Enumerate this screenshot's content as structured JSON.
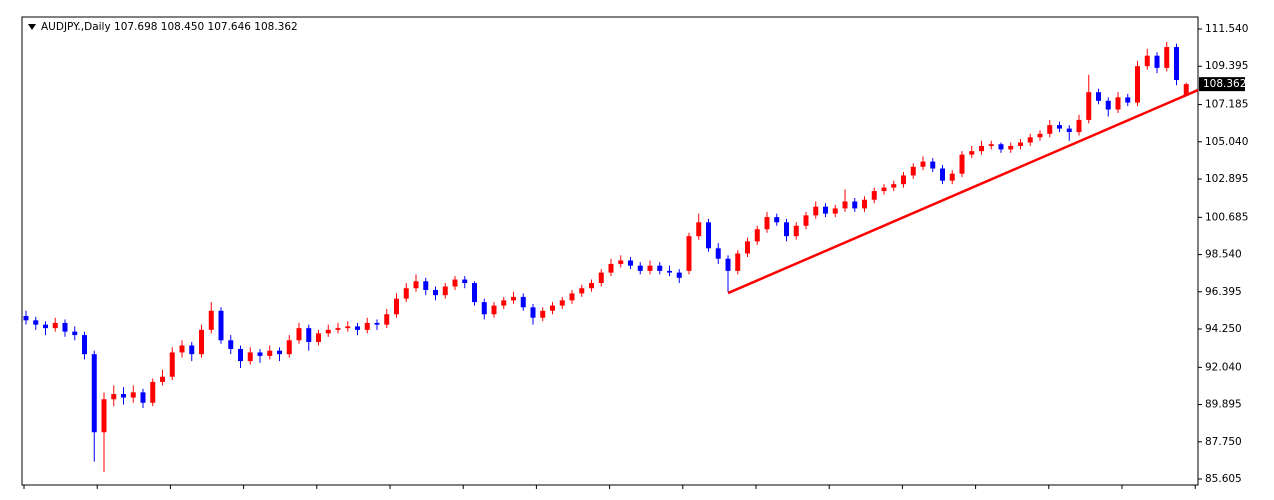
{
  "chart_data": {
    "type": "candlestick",
    "title": "AUDJPY.,Daily  107.698 108.450 107.646 108.362",
    "up_color": "#ff0000",
    "down_color": "#0000ff",
    "ylim": [
      85.259,
      112.232
    ],
    "yticks": [
      {
        "value": 111.54,
        "label": "111.540"
      },
      109.395,
      107.185,
      {
        "value": 105.04,
        "label": "105.040"
      },
      102.895,
      100.685,
      {
        "value": 98.54,
        "label": "98.540"
      },
      96.395,
      {
        "value": 94.25,
        "label": "94.250"
      },
      {
        "value": 92.04,
        "label": "92.040"
      },
      89.895,
      {
        "value": 87.75,
        "label": "87.750"
      },
      85.605
    ],
    "current_price": 108.362,
    "trendline": {
      "color": "#ff0000",
      "x": [
        72,
        120.2
      ],
      "y": [
        96.32,
        108.02
      ]
    },
    "ohlc": [
      [
        95.0,
        95.3,
        94.5,
        94.75
      ],
      [
        94.75,
        94.95,
        94.2,
        94.5
      ],
      [
        94.5,
        94.7,
        93.9,
        94.3
      ],
      [
        94.3,
        94.9,
        94.1,
        94.6
      ],
      [
        94.6,
        94.8,
        93.8,
        94.1
      ],
      [
        94.1,
        94.4,
        93.6,
        93.9
      ],
      [
        93.9,
        94.1,
        92.5,
        92.8
      ],
      [
        92.8,
        93.0,
        86.6,
        88.3
      ],
      [
        88.3,
        90.6,
        86.0,
        90.2
      ],
      [
        90.2,
        91.0,
        89.8,
        90.5
      ],
      [
        90.5,
        90.9,
        89.9,
        90.3
      ],
      [
        90.3,
        91.0,
        90.0,
        90.6
      ],
      [
        90.6,
        90.8,
        89.7,
        90.0
      ],
      [
        90.0,
        91.4,
        89.8,
        91.2
      ],
      [
        91.2,
        91.9,
        91.0,
        91.5
      ],
      [
        91.5,
        93.2,
        91.3,
        92.9
      ],
      [
        92.9,
        93.6,
        92.6,
        93.3
      ],
      [
        93.3,
        93.5,
        92.4,
        92.8
      ],
      [
        92.8,
        94.5,
        92.6,
        94.2
      ],
      [
        94.2,
        95.8,
        94.0,
        95.3
      ],
      [
        95.3,
        95.5,
        93.4,
        93.6
      ],
      [
        93.6,
        93.9,
        92.8,
        93.1
      ],
      [
        93.1,
        93.3,
        92.0,
        92.4
      ],
      [
        92.4,
        93.2,
        92.2,
        92.9
      ],
      [
        92.9,
        93.1,
        92.3,
        92.7
      ],
      [
        92.7,
        93.3,
        92.5,
        93.0
      ],
      [
        93.0,
        93.2,
        92.4,
        92.8
      ],
      [
        92.8,
        93.9,
        92.6,
        93.6
      ],
      [
        93.6,
        94.6,
        93.4,
        94.3
      ],
      [
        94.3,
        94.5,
        93.0,
        93.5
      ],
      [
        93.5,
        94.2,
        93.3,
        94.0
      ],
      [
        94.0,
        94.5,
        93.8,
        94.2
      ],
      [
        94.2,
        94.6,
        94.0,
        94.3
      ],
      [
        94.3,
        94.7,
        94.1,
        94.4
      ],
      [
        94.4,
        94.6,
        93.9,
        94.2
      ],
      [
        94.2,
        94.9,
        94.0,
        94.6
      ],
      [
        94.6,
        94.8,
        94.2,
        94.5
      ],
      [
        94.5,
        95.4,
        94.3,
        95.1
      ],
      [
        95.1,
        96.3,
        94.9,
        96.0
      ],
      [
        96.0,
        96.9,
        95.8,
        96.6
      ],
      [
        96.6,
        97.4,
        96.4,
        97.0
      ],
      [
        97.0,
        97.2,
        96.2,
        96.5
      ],
      [
        96.5,
        96.7,
        95.9,
        96.2
      ],
      [
        96.2,
        96.9,
        96.0,
        96.7
      ],
      [
        96.7,
        97.3,
        96.5,
        97.1
      ],
      [
        97.1,
        97.3,
        96.6,
        96.9
      ],
      [
        96.9,
        97.0,
        95.6,
        95.8
      ],
      [
        95.8,
        96.0,
        94.8,
        95.1
      ],
      [
        95.1,
        95.8,
        94.9,
        95.6
      ],
      [
        95.6,
        96.1,
        95.4,
        95.9
      ],
      [
        95.9,
        96.4,
        95.7,
        96.1
      ],
      [
        96.1,
        96.3,
        95.3,
        95.5
      ],
      [
        95.5,
        95.7,
        94.5,
        94.9
      ],
      [
        94.9,
        95.5,
        94.7,
        95.3
      ],
      [
        95.3,
        95.8,
        95.1,
        95.6
      ],
      [
        95.6,
        96.1,
        95.4,
        95.9
      ],
      [
        95.9,
        96.5,
        95.7,
        96.3
      ],
      [
        96.3,
        96.8,
        96.1,
        96.6
      ],
      [
        96.6,
        97.1,
        96.4,
        96.9
      ],
      [
        96.9,
        97.7,
        96.7,
        97.5
      ],
      [
        97.5,
        98.3,
        97.3,
        98.0
      ],
      [
        98.0,
        98.5,
        97.8,
        98.2
      ],
      [
        98.2,
        98.4,
        97.7,
        97.9
      ],
      [
        97.9,
        98.1,
        97.4,
        97.6
      ],
      [
        97.6,
        98.2,
        97.4,
        97.9
      ],
      [
        97.9,
        98.1,
        97.4,
        97.6
      ],
      [
        97.6,
        97.9,
        97.3,
        97.5
      ],
      [
        97.5,
        97.7,
        96.9,
        97.2
      ],
      [
        97.6,
        99.8,
        97.4,
        99.6
      ],
      [
        99.6,
        100.9,
        99.4,
        100.4
      ],
      [
        100.4,
        100.6,
        98.7,
        98.9
      ],
      [
        98.9,
        99.2,
        98.0,
        98.3
      ],
      [
        98.3,
        98.5,
        96.4,
        97.6
      ],
      [
        97.6,
        98.8,
        97.4,
        98.6
      ],
      [
        98.6,
        99.5,
        98.4,
        99.3
      ],
      [
        99.3,
        100.2,
        99.1,
        100.0
      ],
      [
        100.0,
        101.0,
        99.8,
        100.7
      ],
      [
        100.7,
        100.9,
        100.2,
        100.4
      ],
      [
        100.4,
        100.6,
        99.3,
        99.6
      ],
      [
        99.6,
        100.4,
        99.4,
        100.2
      ],
      [
        100.2,
        101.0,
        100.0,
        100.8
      ],
      [
        100.8,
        101.6,
        100.6,
        101.3
      ],
      [
        101.3,
        101.5,
        100.7,
        100.9
      ],
      [
        100.9,
        101.4,
        100.7,
        101.2
      ],
      [
        101.2,
        102.3,
        101.0,
        101.6
      ],
      [
        101.6,
        101.8,
        101.0,
        101.2
      ],
      [
        101.2,
        101.9,
        101.0,
        101.7
      ],
      [
        101.7,
        102.4,
        101.5,
        102.2
      ],
      [
        102.2,
        102.6,
        102.0,
        102.4
      ],
      [
        102.4,
        102.8,
        102.2,
        102.6
      ],
      [
        102.6,
        103.3,
        102.4,
        103.1
      ],
      [
        103.1,
        103.8,
        102.9,
        103.6
      ],
      [
        103.6,
        104.2,
        103.4,
        103.9
      ],
      [
        103.9,
        104.1,
        103.3,
        103.5
      ],
      [
        103.5,
        103.7,
        102.6,
        102.8
      ],
      [
        102.8,
        103.4,
        102.6,
        103.2
      ],
      [
        103.2,
        104.5,
        103.0,
        104.3
      ],
      [
        104.3,
        104.8,
        104.1,
        104.5
      ],
      [
        104.5,
        105.1,
        104.3,
        104.8
      ],
      [
        104.8,
        105.1,
        104.6,
        104.9
      ],
      [
        104.9,
        105.0,
        104.4,
        104.6
      ],
      [
        104.6,
        105.0,
        104.4,
        104.8
      ],
      [
        104.8,
        105.2,
        104.6,
        105.0
      ],
      [
        105.0,
        105.5,
        104.8,
        105.3
      ],
      [
        105.3,
        105.7,
        105.1,
        105.5
      ],
      [
        105.5,
        106.3,
        105.3,
        106.0
      ],
      [
        106.0,
        106.2,
        105.6,
        105.8
      ],
      [
        105.8,
        106.0,
        105.1,
        105.6
      ],
      [
        105.6,
        106.6,
        105.4,
        106.3
      ],
      [
        106.3,
        108.9,
        106.1,
        107.9
      ],
      [
        107.9,
        108.1,
        107.2,
        107.4
      ],
      [
        107.4,
        107.6,
        106.5,
        106.9
      ],
      [
        106.9,
        107.9,
        106.7,
        107.6
      ],
      [
        107.6,
        107.8,
        107.1,
        107.3
      ],
      [
        107.3,
        109.7,
        107.1,
        109.4
      ],
      [
        109.4,
        110.4,
        109.2,
        110.0
      ],
      [
        110.0,
        110.2,
        109.0,
        109.3
      ],
      [
        109.3,
        110.8,
        109.1,
        110.5
      ],
      [
        110.5,
        110.7,
        108.3,
        108.6
      ],
      [
        107.698,
        108.45,
        107.646,
        108.362
      ]
    ]
  }
}
